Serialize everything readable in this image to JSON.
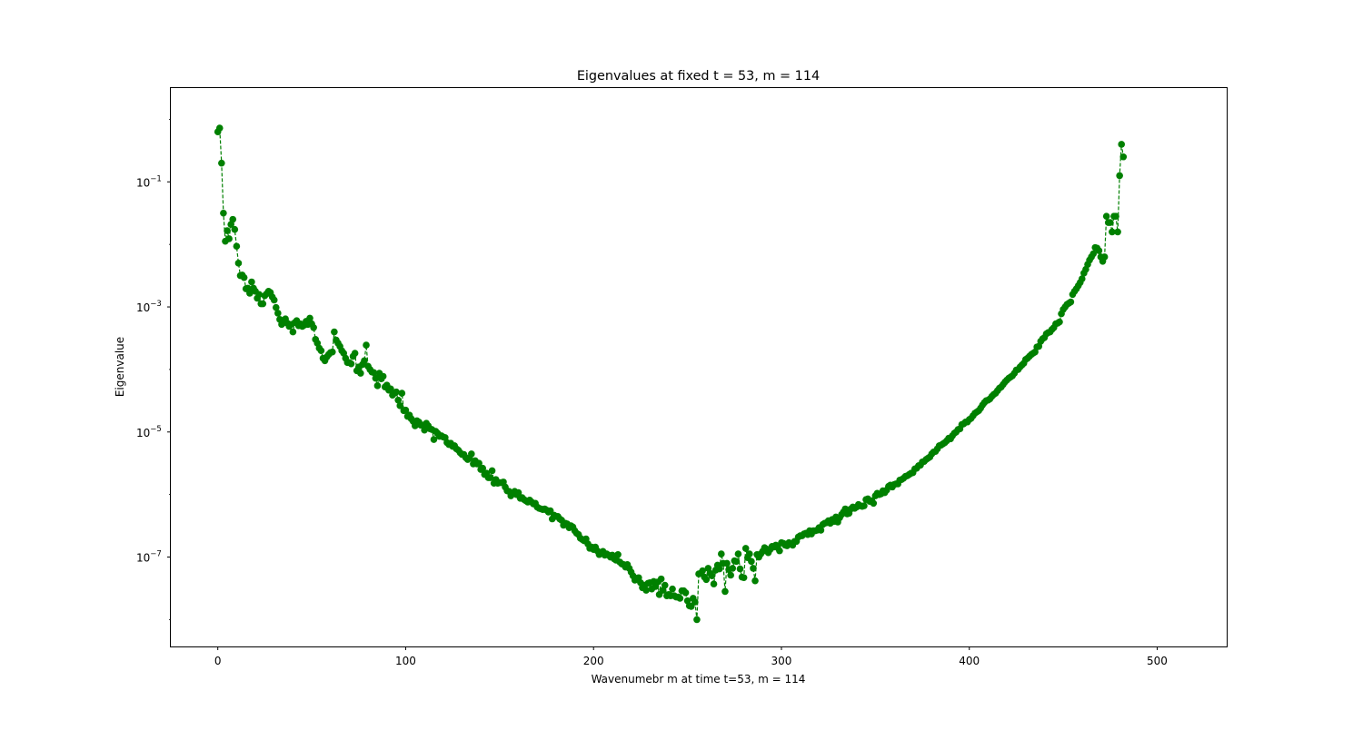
{
  "chart_data": {
    "type": "scatter",
    "title": "Eigenvalues at fixed t = 53, m = 114",
    "xlabel": "Wavenumebr m at time t=53, m = 114",
    "ylabel": "Eigenvalue",
    "yscale": "log",
    "xlim": [
      -25,
      537
    ],
    "ylim_log10": [
      -8.43,
      0.5
    ],
    "xticks": [
      {
        "value": 0,
        "label": "0"
      },
      {
        "value": 100,
        "label": "100"
      },
      {
        "value": 200,
        "label": "200"
      },
      {
        "value": 300,
        "label": "300"
      },
      {
        "value": 400,
        "label": "400"
      },
      {
        "value": 500,
        "label": "500"
      }
    ],
    "yticks": [
      {
        "exp": -1,
        "base": "10",
        "sup": "−1"
      },
      {
        "exp": -3,
        "base": "10",
        "sup": "−3"
      },
      {
        "exp": -5,
        "base": "10",
        "sup": "−5"
      },
      {
        "exp": -7,
        "base": "10",
        "sup": "−7"
      }
    ],
    "grid": false,
    "legend": "none",
    "marker_color": "#008000",
    "line_style": "dashed",
    "series": [
      {
        "marker": "circle",
        "x_start": 0,
        "x_step": 1,
        "log10_values": [
          -0.2,
          -0.14,
          -0.7,
          -1.5,
          -1.95,
          -1.78,
          -1.91,
          -1.68,
          -1.6,
          -1.76,
          -2.03,
          -2.3,
          -2.5,
          -2.49,
          -2.53,
          -2.71,
          -2.7,
          -2.78,
          -2.6,
          -2.7,
          -2.75,
          -2.86,
          -2.8,
          -2.95,
          -2.95,
          -2.82,
          -2.79,
          -2.75,
          -2.77,
          -2.84,
          -2.89,
          -3.01,
          -3.1,
          -3.2,
          -3.28,
          -3.22,
          -3.19,
          -3.26,
          -3.31,
          -3.28,
          -3.4,
          -3.25,
          -3.22,
          -3.3,
          -3.27,
          -3.31,
          -3.29,
          -3.23,
          -3.28,
          -3.18,
          -3.27,
          -3.33,
          -3.52,
          -3.58,
          -3.66,
          -3.7,
          -3.82,
          -3.86,
          -3.8,
          -3.76,
          -3.73,
          -3.72,
          -3.4,
          -3.53,
          -3.58,
          -3.63,
          -3.7,
          -3.74,
          -3.82,
          -3.89,
          -3.89,
          -3.91,
          -3.79,
          -3.74,
          -4.02,
          -3.96,
          -4.06,
          -3.92,
          -3.86,
          -3.61,
          -3.95,
          -4.0,
          -4.04,
          -4.05,
          -4.14,
          -4.26,
          -4.06,
          -4.15,
          -4.11,
          -4.28,
          -4.25,
          -4.33,
          -4.31,
          -4.41,
          -4.38,
          -4.36,
          -4.49,
          -4.58,
          -4.38,
          -4.66,
          -4.65,
          -4.75,
          -4.73,
          -4.79,
          -4.83,
          -4.9,
          -4.82,
          -4.84,
          -4.89,
          -4.89,
          -4.97,
          -4.86,
          -4.9,
          -4.95,
          -4.96,
          -5.12,
          -4.99,
          -5.02,
          -5.07,
          -5.06,
          -5.08,
          -5.09,
          -5.17,
          -5.2,
          -5.18,
          -5.23,
          -5.22,
          -5.27,
          -5.29,
          -5.33,
          -5.36,
          -5.36,
          -5.41,
          -5.44,
          -5.42,
          -5.35,
          -5.51,
          -5.46,
          -5.51,
          -5.5,
          -5.6,
          -5.58,
          -5.68,
          -5.66,
          -5.73,
          -5.73,
          -5.62,
          -5.82,
          -5.76,
          -5.82,
          -5.81,
          -5.81,
          -5.8,
          -5.88,
          -5.94,
          -5.95,
          -6.02,
          -5.98,
          -5.95,
          -6.0,
          -5.97,
          -6.06,
          -6.05,
          -6.08,
          -6.1,
          -6.12,
          -6.09,
          -6.12,
          -6.15,
          -6.14,
          -6.2,
          -6.22,
          -6.23,
          -6.24,
          -6.23,
          -6.25,
          -6.28,
          -6.26,
          -6.39,
          -6.33,
          -6.35,
          -6.35,
          -6.39,
          -6.41,
          -6.49,
          -6.46,
          -6.47,
          -6.53,
          -6.5,
          -6.52,
          -6.58,
          -6.62,
          -6.64,
          -6.7,
          -6.72,
          -6.74,
          -6.71,
          -6.79,
          -6.86,
          -6.84,
          -6.88,
          -6.84,
          -6.9,
          -6.96,
          -6.94,
          -6.91,
          -6.97,
          -6.95,
          -6.97,
          -7.0,
          -6.97,
          -7.03,
          -7.05,
          -6.96,
          -7.08,
          -7.11,
          -7.12,
          -7.16,
          -7.12,
          -7.18,
          -7.24,
          -7.3,
          -7.37,
          -7.34,
          -7.33,
          -7.41,
          -7.49,
          -7.45,
          -7.53,
          -7.42,
          -7.41,
          -7.51,
          -7.39,
          -7.47,
          -7.4,
          -7.6,
          -7.35,
          -7.53,
          -7.45,
          -7.62,
          -7.6,
          -7.62,
          -7.51,
          -7.62,
          -7.64,
          -7.64,
          -7.66,
          -7.54,
          -7.54,
          -7.57,
          -7.7,
          -7.78,
          -7.79,
          -7.66,
          -7.72,
          -8.0,
          -7.27,
          -7.26,
          -7.22,
          -7.32,
          -7.36,
          -7.18,
          -7.26,
          -7.3,
          -7.43,
          -7.21,
          -7.13,
          -7.19,
          -6.95,
          -7.1,
          -7.55,
          -7.1,
          -7.2,
          -7.29,
          -7.18,
          -7.06,
          -7.07,
          -6.95,
          -7.19,
          -7.32,
          -7.33,
          -6.86,
          -7.01,
          -6.95,
          -7.07,
          -7.18,
          -7.38,
          -6.96,
          -7.0,
          -6.95,
          -6.91,
          -6.85,
          -6.87,
          -6.93,
          -6.88,
          -6.83,
          -6.84,
          -6.81,
          -6.85,
          -6.9,
          -6.77,
          -6.78,
          -6.81,
          -6.82,
          -6.77,
          -6.79,
          -6.81,
          -6.75,
          -6.75,
          -6.68,
          -6.66,
          -6.66,
          -6.63,
          -6.62,
          -6.64,
          -6.58,
          -6.63,
          -6.58,
          -6.58,
          -6.57,
          -6.53,
          -6.57,
          -6.48,
          -6.46,
          -6.45,
          -6.42,
          -6.46,
          -6.4,
          -6.43,
          -6.36,
          -6.44,
          -6.37,
          -6.32,
          -6.28,
          -6.23,
          -6.31,
          -6.3,
          -6.23,
          -6.2,
          -6.22,
          -6.2,
          -6.16,
          -6.18,
          -6.19,
          -6.18,
          -6.08,
          -6.07,
          -6.11,
          -6.1,
          -6.14,
          -6.02,
          -5.98,
          -6.0,
          -5.99,
          -5.94,
          -5.97,
          -5.93,
          -5.87,
          -5.85,
          -5.88,
          -5.84,
          -5.83,
          -5.83,
          -5.77,
          -5.76,
          -5.74,
          -5.71,
          -5.7,
          -5.68,
          -5.66,
          -5.65,
          -5.59,
          -5.58,
          -5.54,
          -5.53,
          -5.48,
          -5.47,
          -5.44,
          -5.42,
          -5.4,
          -5.35,
          -5.32,
          -5.31,
          -5.27,
          -5.22,
          -5.21,
          -5.19,
          -5.17,
          -5.14,
          -5.1,
          -5.11,
          -5.06,
          -5.02,
          -5.0,
          -4.96,
          -4.95,
          -4.88,
          -4.87,
          -4.84,
          -4.84,
          -4.8,
          -4.78,
          -4.74,
          -4.7,
          -4.68,
          -4.66,
          -4.62,
          -4.57,
          -4.53,
          -4.5,
          -4.49,
          -4.47,
          -4.43,
          -4.4,
          -4.38,
          -4.34,
          -4.3,
          -4.28,
          -4.24,
          -4.2,
          -4.17,
          -4.14,
          -4.12,
          -4.1,
          -4.06,
          -4.01,
          -4.0,
          -3.96,
          -3.93,
          -3.9,
          -3.84,
          -3.82,
          -3.79,
          -3.76,
          -3.74,
          -3.72,
          -3.64,
          -3.63,
          -3.55,
          -3.51,
          -3.49,
          -3.43,
          -3.41,
          -3.4,
          -3.36,
          -3.33,
          -3.27,
          -3.26,
          -3.24,
          -3.11,
          -3.04,
          -3.0,
          -2.96,
          -2.94,
          -2.92,
          -2.8,
          -2.75,
          -2.71,
          -2.66,
          -2.61,
          -2.55,
          -2.46,
          -2.4,
          -2.32,
          -2.25,
          -2.2,
          -2.15,
          -2.05,
          -2.06,
          -2.1,
          -2.2,
          -2.27,
          -2.2,
          -1.55,
          -1.65,
          -1.65,
          -1.8,
          -1.55,
          -1.55,
          -1.8,
          -0.9,
          -0.4,
          -0.6
        ]
      }
    ]
  }
}
